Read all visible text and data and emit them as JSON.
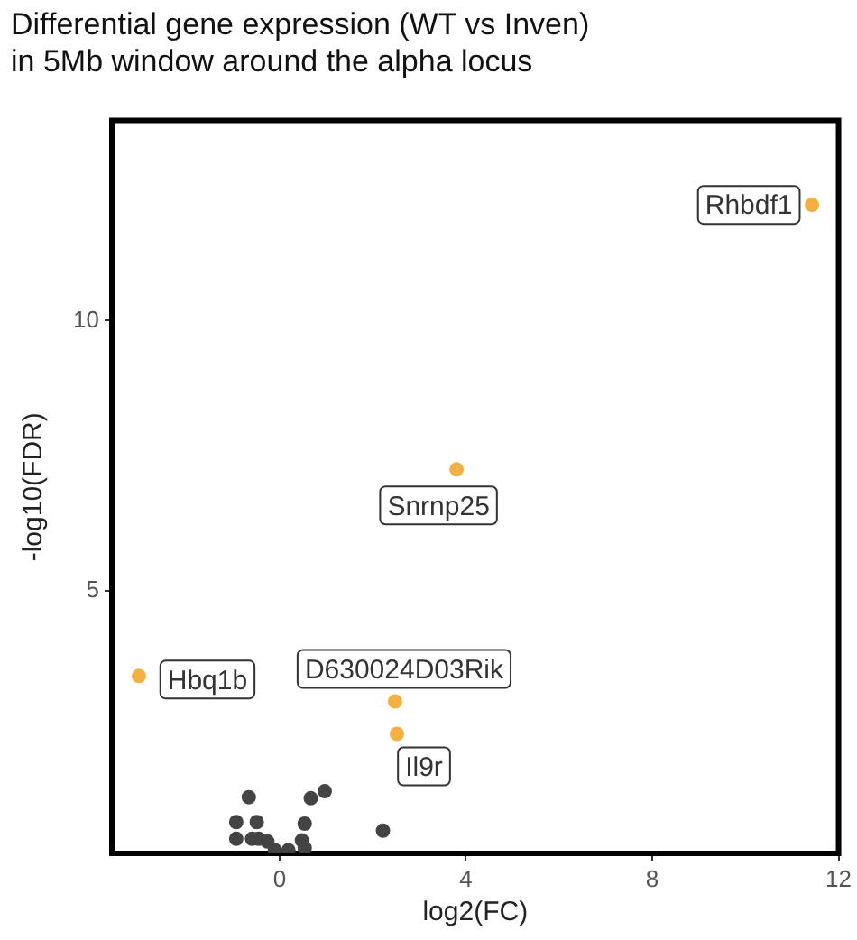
{
  "chart_data": {
    "type": "scatter",
    "title": "Differential gene expression (WT vs Inven)\nin 5Mb window around the alpha locus",
    "xlabel": "log2(FC)",
    "ylabel": "-log10(FDR)",
    "xlim": [
      -3.6,
      12
    ],
    "ylim": [
      0.15,
      13.7
    ],
    "xticks": [
      0,
      4,
      8,
      12
    ],
    "yticks": [
      5,
      10
    ],
    "grid": false,
    "legend": false,
    "marker": "circle",
    "series": [
      {
        "color": "#444444",
        "x": [
          -0.66,
          -0.93,
          -0.49,
          -0.93,
          -0.59,
          -0.45,
          -0.26,
          0.54,
          0.48,
          0.67,
          0.97,
          2.22,
          -0.1,
          0.19,
          0.54
        ],
        "values": [
          1.19,
          0.73,
          0.73,
          0.42,
          0.42,
          0.42,
          0.37,
          0.7,
          0.39,
          1.17,
          1.3,
          0.57,
          0.21,
          0.21,
          0.25
        ]
      },
      {
        "color": "#f4b042",
        "x": [
          11.43,
          3.8,
          -3.02,
          2.48,
          2.52
        ],
        "values": [
          12.14,
          7.25,
          3.43,
          2.96,
          2.36
        ]
      }
    ],
    "annotations": [
      {
        "text": "Rhbdf1",
        "x": 11.43,
        "y": 12.14
      },
      {
        "text": "Snrnp25",
        "x": 3.8,
        "y": 7.25
      },
      {
        "text": "Hbq1b",
        "x": -3.02,
        "y": 3.43
      },
      {
        "text": "D630024D03Rik",
        "x": 2.48,
        "y": 2.96
      },
      {
        "text": "Il9r",
        "x": 2.52,
        "y": 2.36
      }
    ]
  }
}
